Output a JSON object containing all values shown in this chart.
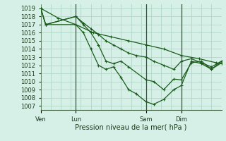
{
  "xlabel": "Pression niveau de la mer( hPa )",
  "bg_color": "#d6f0e8",
  "grid_color": "#b0d8c8",
  "line_color": "#1a5c1a",
  "vline_color": "#2d5a2d",
  "ylim": [
    1006.5,
    1019.5
  ],
  "yticks": [
    1007,
    1008,
    1009,
    1010,
    1011,
    1012,
    1013,
    1014,
    1015,
    1016,
    1017,
    1018,
    1019
  ],
  "xtick_labels": [
    "Ven",
    "Lun",
    "Sam",
    "Dim"
  ],
  "xtick_positions": [
    0,
    14,
    42,
    56
  ],
  "xmax": 72,
  "vlines": [
    14,
    42,
    56
  ],
  "line1": {
    "x": [
      0,
      2,
      14,
      17,
      20,
      23,
      26,
      29,
      32,
      35,
      38,
      42,
      45,
      49,
      53,
      56,
      60,
      64,
      68,
      72
    ],
    "y": [
      1019.0,
      1017.0,
      1018.0,
      1017.2,
      1016.5,
      1015.8,
      1015.0,
      1014.5,
      1014.0,
      1013.5,
      1013.2,
      1013.0,
      1012.5,
      1012.0,
      1011.5,
      1012.5,
      1012.8,
      1012.3,
      1011.8,
      1012.5
    ]
  },
  "line2": {
    "x": [
      0,
      2,
      14,
      17,
      20,
      23,
      26,
      29,
      32,
      35,
      42,
      45,
      49,
      53,
      56,
      60,
      64,
      68,
      72
    ],
    "y": [
      1019.0,
      1017.0,
      1018.0,
      1017.0,
      1016.0,
      1014.5,
      1012.5,
      1012.2,
      1012.5,
      1011.8,
      1010.2,
      1010.0,
      1009.0,
      1010.3,
      1010.2,
      1012.3,
      1012.5,
      1011.5,
      1012.5
    ]
  },
  "line3": {
    "x": [
      0,
      2,
      14,
      17,
      20,
      23,
      26,
      29,
      32,
      35,
      38,
      42,
      45,
      49,
      53,
      56,
      60,
      64,
      68,
      72
    ],
    "y": [
      1019.0,
      1017.0,
      1017.0,
      1016.0,
      1014.0,
      1012.0,
      1011.5,
      1011.8,
      1010.5,
      1009.0,
      1008.5,
      1007.5,
      1007.2,
      1007.8,
      1009.0,
      1009.5,
      1012.5,
      1012.2,
      1011.5,
      1012.3
    ]
  },
  "line4": {
    "x": [
      0,
      7,
      14,
      21,
      28,
      35,
      42,
      49,
      56,
      63,
      70,
      72
    ],
    "y": [
      1019.0,
      1017.8,
      1017.0,
      1016.0,
      1015.5,
      1015.0,
      1014.5,
      1014.0,
      1013.2,
      1012.8,
      1012.3,
      1012.2
    ]
  }
}
